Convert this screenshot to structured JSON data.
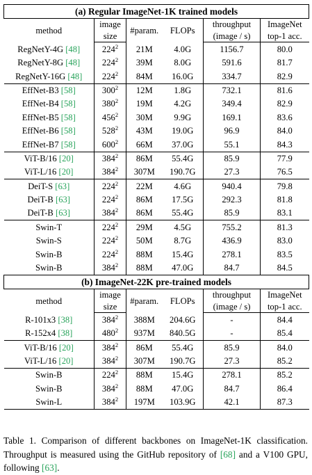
{
  "sections": [
    {
      "title": "(a) Regular ImageNet-1K trained models",
      "headers": {
        "method": "method",
        "image_size_1": "image",
        "image_size_2": "size",
        "params": "#param.",
        "flops": "FLOPs",
        "throughput_1": "throughput",
        "throughput_2": "(image / s)",
        "acc_1": "ImageNet",
        "acc_2": "top-1 acc."
      },
      "groups": [
        [
          {
            "name": "RegNetY-4G",
            "ref": "48",
            "size": "224",
            "sup": "2",
            "params": "21M",
            "flops": "4.0G",
            "throughput": "1156.7",
            "acc": "80.0"
          },
          {
            "name": "RegNetY-8G",
            "ref": "48",
            "size": "224",
            "sup": "2",
            "params": "39M",
            "flops": "8.0G",
            "throughput": "591.6",
            "acc": "81.7"
          },
          {
            "name": "RegNetY-16G",
            "ref": "48",
            "size": "224",
            "sup": "2",
            "params": "84M",
            "flops": "16.0G",
            "throughput": "334.7",
            "acc": "82.9"
          }
        ],
        [
          {
            "name": "EffNet-B3",
            "ref": "58",
            "size": "300",
            "sup": "2",
            "params": "12M",
            "flops": "1.8G",
            "throughput": "732.1",
            "acc": "81.6"
          },
          {
            "name": "EffNet-B4",
            "ref": "58",
            "size": "380",
            "sup": "2",
            "params": "19M",
            "flops": "4.2G",
            "throughput": "349.4",
            "acc": "82.9"
          },
          {
            "name": "EffNet-B5",
            "ref": "58",
            "size": "456",
            "sup": "2",
            "params": "30M",
            "flops": "9.9G",
            "throughput": "169.1",
            "acc": "83.6"
          },
          {
            "name": "EffNet-B6",
            "ref": "58",
            "size": "528",
            "sup": "2",
            "params": "43M",
            "flops": "19.0G",
            "throughput": "96.9",
            "acc": "84.0"
          },
          {
            "name": "EffNet-B7",
            "ref": "58",
            "size": "600",
            "sup": "2",
            "params": "66M",
            "flops": "37.0G",
            "throughput": "55.1",
            "acc": "84.3"
          }
        ],
        [
          {
            "name": "ViT-B/16",
            "ref": "20",
            "size": "384",
            "sup": "2",
            "params": "86M",
            "flops": "55.4G",
            "throughput": "85.9",
            "acc": "77.9"
          },
          {
            "name": "ViT-L/16",
            "ref": "20",
            "size": "384",
            "sup": "2",
            "params": "307M",
            "flops": "190.7G",
            "throughput": "27.3",
            "acc": "76.5"
          }
        ],
        [
          {
            "name": "DeiT-S",
            "ref": "63",
            "size": "224",
            "sup": "2",
            "params": "22M",
            "flops": "4.6G",
            "throughput": "940.4",
            "acc": "79.8"
          },
          {
            "name": "DeiT-B",
            "ref": "63",
            "size": "224",
            "sup": "2",
            "params": "86M",
            "flops": "17.5G",
            "throughput": "292.3",
            "acc": "81.8"
          },
          {
            "name": "DeiT-B",
            "ref": "63",
            "size": "384",
            "sup": "2",
            "params": "86M",
            "flops": "55.4G",
            "throughput": "85.9",
            "acc": "83.1"
          }
        ],
        [
          {
            "name": "Swin-T",
            "ref": "",
            "size": "224",
            "sup": "2",
            "params": "29M",
            "flops": "4.5G",
            "throughput": "755.2",
            "acc": "81.3"
          },
          {
            "name": "Swin-S",
            "ref": "",
            "size": "224",
            "sup": "2",
            "params": "50M",
            "flops": "8.7G",
            "throughput": "436.9",
            "acc": "83.0"
          },
          {
            "name": "Swin-B",
            "ref": "",
            "size": "224",
            "sup": "2",
            "params": "88M",
            "flops": "15.4G",
            "throughput": "278.1",
            "acc": "83.5"
          },
          {
            "name": "Swin-B",
            "ref": "",
            "size": "384",
            "sup": "2",
            "params": "88M",
            "flops": "47.0G",
            "throughput": "84.7",
            "acc": "84.5"
          }
        ]
      ]
    },
    {
      "title": "(b) ImageNet-22K pre-trained models",
      "headers": {
        "method": "method",
        "image_size_1": "image",
        "image_size_2": "size",
        "params": "#param.",
        "flops": "FLOPs",
        "throughput_1": "throughput",
        "throughput_2": "(image / s)",
        "acc_1": "ImageNet",
        "acc_2": "top-1 acc."
      },
      "groups": [
        [
          {
            "name": "R-101x3",
            "ref": "38",
            "size": "384",
            "sup": "2",
            "params": "388M",
            "flops": "204.6G",
            "throughput": "-",
            "acc": "84.4"
          },
          {
            "name": "R-152x4",
            "ref": "38",
            "size": "480",
            "sup": "2",
            "params": "937M",
            "flops": "840.5G",
            "throughput": "-",
            "acc": "85.4"
          }
        ],
        [
          {
            "name": "ViT-B/16",
            "ref": "20",
            "size": "384",
            "sup": "2",
            "params": "86M",
            "flops": "55.4G",
            "throughput": "85.9",
            "acc": "84.0"
          },
          {
            "name": "ViT-L/16",
            "ref": "20",
            "size": "384",
            "sup": "2",
            "params": "307M",
            "flops": "190.7G",
            "throughput": "27.3",
            "acc": "85.2"
          }
        ],
        [
          {
            "name": "Swin-B",
            "ref": "",
            "size": "224",
            "sup": "2",
            "params": "88M",
            "flops": "15.4G",
            "throughput": "278.1",
            "acc": "85.2"
          },
          {
            "name": "Swin-B",
            "ref": "",
            "size": "384",
            "sup": "2",
            "params": "88M",
            "flops": "47.0G",
            "throughput": "84.7",
            "acc": "86.4"
          },
          {
            "name": "Swin-L",
            "ref": "",
            "size": "384",
            "sup": "2",
            "params": "197M",
            "flops": "103.9G",
            "throughput": "42.1",
            "acc": "87.3"
          }
        ]
      ]
    }
  ],
  "caption": {
    "label": "Table 1.",
    "part1": "Comparison of different backbones on ImageNet-1K classification. Throughput is measured using the GitHub repository of ",
    "ref1": "[68]",
    "part2": " and a V100 GPU, following ",
    "ref2": "[63]",
    "part3": "."
  }
}
